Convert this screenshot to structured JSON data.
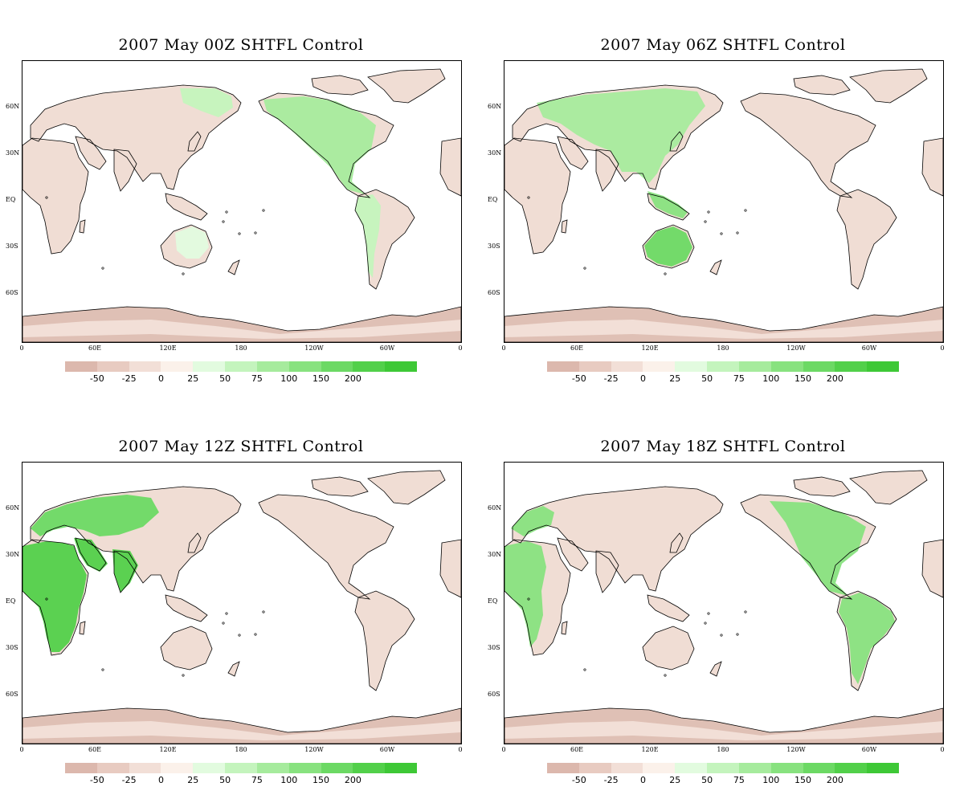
{
  "panels": [
    {
      "title": "2007 May  00Z SHTFL Control",
      "hotspots": [
        "namerica",
        "samerica_w",
        "siberia_e",
        "australia_light"
      ]
    },
    {
      "title": "2007  May 06Z SHTFL Control",
      "hotspots": [
        "asia",
        "australia",
        "se_asia"
      ]
    },
    {
      "title": "2007  May 12Z SHTFL Control",
      "hotspots": [
        "africa",
        "europe",
        "india",
        "arabia"
      ]
    },
    {
      "title": "2007  May 18Z SHTFL Control",
      "hotspots": [
        "namerica_e",
        "samerica",
        "africa_w",
        "europe_w"
      ]
    }
  ],
  "lat_labels": [
    "60N",
    "30N",
    "EQ",
    "30S",
    "60S"
  ],
  "lon_labels": [
    "0",
    "60E",
    "120E",
    "180",
    "120W",
    "60W",
    "0"
  ],
  "colorbar": {
    "labels": [
      "-50",
      "-25",
      "0",
      "25",
      "50",
      "75",
      "100",
      "150",
      "200"
    ],
    "colors": [
      "#dcb8ad",
      "#e8cbc1",
      "#f2dfd7",
      "#fbf1ea",
      "#e2fbdf",
      "#c4f4bd",
      "#a6eb9d",
      "#88e27f",
      "#6cd964",
      "#52d04a",
      "#3ec836"
    ]
  },
  "colors": {
    "ocean": "#ffffff",
    "land_negative": "#f0ddd4",
    "antarctica": "#dfc0b5",
    "coast": "#000000"
  }
}
